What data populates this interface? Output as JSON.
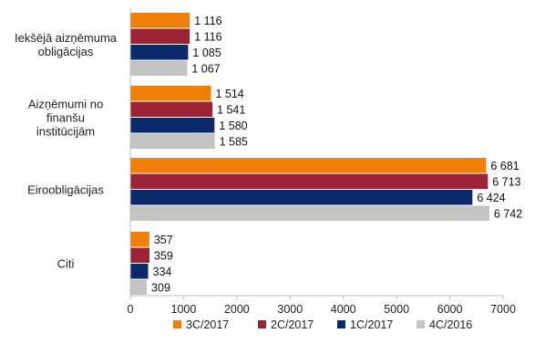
{
  "chart_data": {
    "type": "bar",
    "orientation": "horizontal",
    "categories": [
      [
        "Iekšējā aizņēmuma",
        "obligācijas"
      ],
      [
        "Aizņēmumi no",
        "finanšu",
        "institūcijām"
      ],
      [
        "Eiroobligācijas"
      ],
      [
        "Citi"
      ]
    ],
    "series": [
      {
        "name": "3C/2017",
        "color": "#f07f09",
        "values": [
          1116,
          1514,
          6681,
          357
        ],
        "labels": [
          "1 116",
          "1 514",
          "6 681",
          "357"
        ]
      },
      {
        "name": "2C/2017",
        "color": "#9b2335",
        "values": [
          1116,
          1541,
          6713,
          359
        ],
        "labels": [
          "1 116",
          "1 541",
          "6 713",
          "359"
        ]
      },
      {
        "name": "1C/2017",
        "color": "#0a2a6b",
        "values": [
          1085,
          1580,
          6424,
          334
        ],
        "labels": [
          "1 085",
          "1 580",
          "6 424",
          "334"
        ]
      },
      {
        "name": "4C/2016",
        "color": "#c3c3c3",
        "values": [
          1067,
          1585,
          6742,
          309
        ],
        "labels": [
          "1 067",
          "1 585",
          "6 742",
          "309"
        ]
      }
    ],
    "xlim": [
      0,
      7000
    ],
    "xticks": [
      0,
      1000,
      2000,
      3000,
      4000,
      5000,
      6000,
      7000
    ],
    "grid": false,
    "legend_position": "bottom"
  }
}
